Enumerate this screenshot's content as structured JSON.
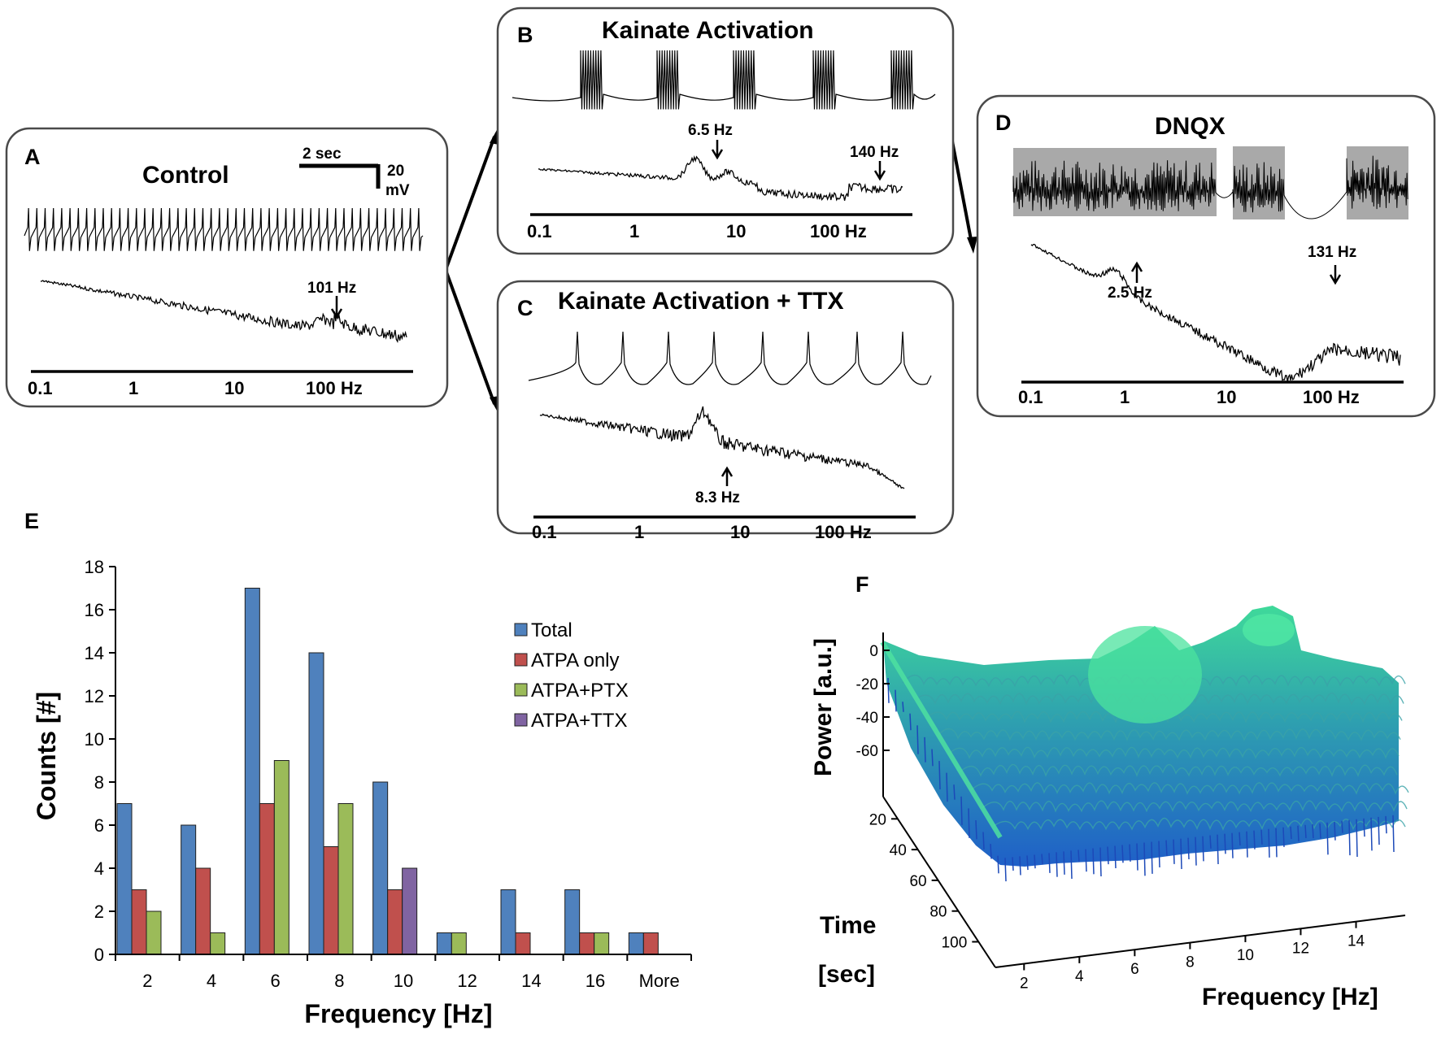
{
  "panels": {
    "A": {
      "letter": "A",
      "title": "Control",
      "scalebar_time": "2 sec",
      "scalebar_volt_value": "20",
      "scalebar_volt_unit": "mV",
      "peak_label": "101 Hz",
      "ticks": [
        "0.1",
        "1",
        "10",
        "100 Hz"
      ]
    },
    "B": {
      "letter": "B",
      "title": "Kainate Activation",
      "peak_labels": [
        "6.5 Hz",
        "140 Hz"
      ],
      "ticks": [
        "0.1",
        "1",
        "10",
        "100 Hz"
      ]
    },
    "C": {
      "letter": "C",
      "title": "Kainate Activation + TTX",
      "peak_label": "8.3 Hz",
      "ticks": [
        "0.1",
        "1",
        "10",
        "100 Hz"
      ]
    },
    "D": {
      "letter": "D",
      "title": "DNQX",
      "peak_labels": [
        "2.5 Hz",
        "131 Hz"
      ],
      "ticks": [
        "0.1",
        "1",
        "10",
        "100 Hz"
      ]
    },
    "E": {
      "letter": "E"
    },
    "F": {
      "letter": "F"
    }
  },
  "colors": {
    "Total": "#4f81bd",
    "ATPA only": "#c0504d",
    "ATPA+PTX": "#9bbb59",
    "ATPA+TTX": "#8064a2"
  },
  "chart_data": [
    {
      "type": "bar",
      "title": "",
      "xlabel": "Frequency [Hz]",
      "ylabel": "Counts [#]",
      "ylim": [
        0,
        18
      ],
      "yticks": [
        "0",
        "2",
        "4",
        "6",
        "8",
        "10",
        "12",
        "14",
        "16",
        "18"
      ],
      "categories": [
        "2",
        "4",
        "6",
        "8",
        "10",
        "12",
        "14",
        "16",
        "More"
      ],
      "legend_position": "top-right",
      "series": [
        {
          "name": "Total",
          "values": [
            7,
            6,
            17,
            14,
            8,
            1,
            3,
            3,
            1
          ]
        },
        {
          "name": "ATPA only",
          "values": [
            3,
            4,
            7,
            5,
            3,
            0,
            1,
            1,
            1
          ]
        },
        {
          "name": "ATPA+PTX",
          "values": [
            2,
            1,
            9,
            7,
            0,
            1,
            0,
            1,
            0
          ]
        },
        {
          "name": "ATPA+TTX",
          "values": [
            0,
            0,
            0,
            0,
            4,
            0,
            0,
            0,
            0
          ]
        }
      ]
    },
    {
      "type": "surface",
      "title": "",
      "zlabel": "Power [a.u.]",
      "zticks": [
        "0",
        "-20",
        "-40",
        "-60"
      ],
      "xlabel": "Frequency [Hz]",
      "xticks": [
        "2",
        "4",
        "6",
        "8",
        "10",
        "12",
        "14"
      ],
      "ylabel_line1": "Time",
      "ylabel_line2": "[sec]",
      "yticks": [
        "20",
        "40",
        "60",
        "80",
        "100"
      ]
    }
  ]
}
